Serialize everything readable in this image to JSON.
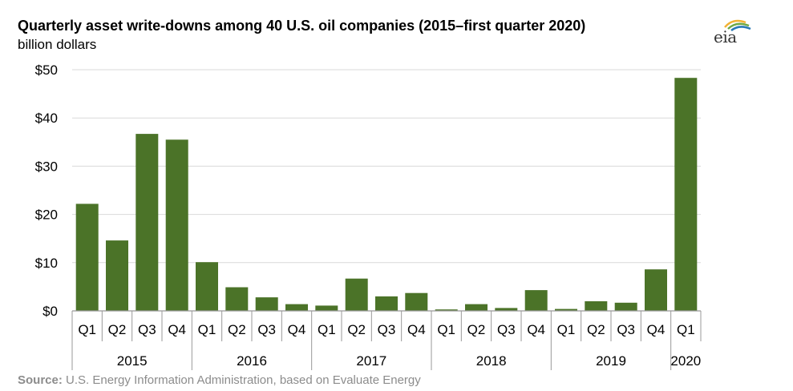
{
  "header": {
    "title": "Quarterly asset write-downs among 40 U.S. oil companies (2015–first quarter 2020)",
    "subtitle": "billion dollars"
  },
  "logo": {
    "text": "eia",
    "icon": "eia-logo-icon",
    "accent_colors": [
      "#f2b233",
      "#6fa843",
      "#2a7ab7"
    ]
  },
  "source": {
    "label": "Source:",
    "text": "U.S. Energy Information Administration, based on Evaluate Energy"
  },
  "chart_data": {
    "type": "bar",
    "title": "Quarterly asset write-downs among 40 U.S. oil companies (2015–first quarter 2020)",
    "ylabel": "billion dollars",
    "xlabel": "",
    "ylim": [
      0,
      50
    ],
    "yticks": [
      0,
      10,
      20,
      30,
      40,
      50
    ],
    "ytick_labels": [
      "$0",
      "$10",
      "$20",
      "$30",
      "$40",
      "$50"
    ],
    "grid": true,
    "bar_color": "#4b7328",
    "groups": [
      {
        "label": "2015",
        "categories": [
          "Q1",
          "Q2",
          "Q3",
          "Q4"
        ],
        "values": [
          22.2,
          14.6,
          36.7,
          35.5
        ]
      },
      {
        "label": "2016",
        "categories": [
          "Q1",
          "Q2",
          "Q3",
          "Q4"
        ],
        "values": [
          10.1,
          4.9,
          2.8,
          1.4
        ]
      },
      {
        "label": "2017",
        "categories": [
          "Q1",
          "Q2",
          "Q3",
          "Q4"
        ],
        "values": [
          1.1,
          6.7,
          3.0,
          3.7
        ]
      },
      {
        "label": "2018",
        "categories": [
          "Q1",
          "Q2",
          "Q3",
          "Q4"
        ],
        "values": [
          0.3,
          1.4,
          0.6,
          4.3
        ]
      },
      {
        "label": "2019",
        "categories": [
          "Q1",
          "Q2",
          "Q3",
          "Q4"
        ],
        "values": [
          0.4,
          2.0,
          1.7,
          8.6
        ]
      },
      {
        "label": "2020",
        "categories": [
          "Q1"
        ],
        "values": [
          48.3
        ]
      }
    ]
  }
}
